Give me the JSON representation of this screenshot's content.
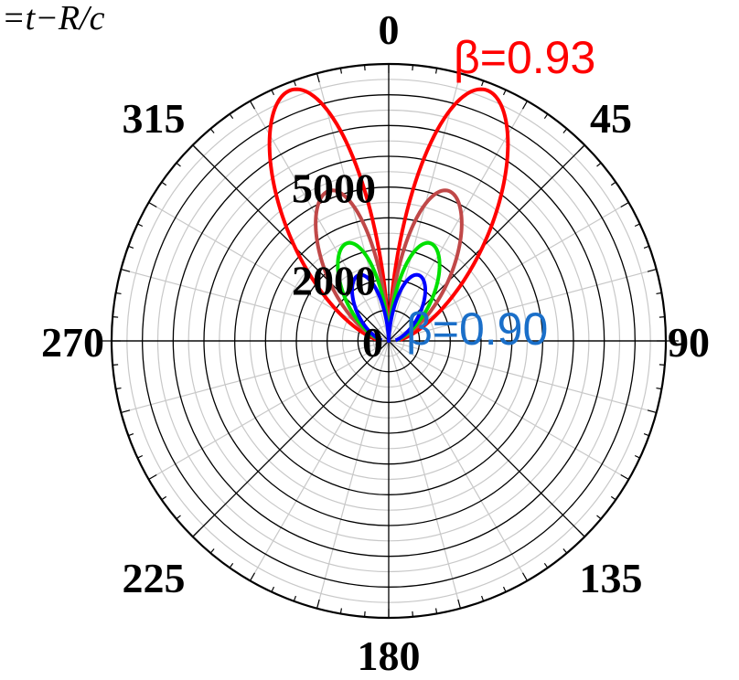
{
  "header": {
    "formula_fragment": "=t−R/c"
  },
  "chart_data": {
    "type": "polar-line",
    "title": "",
    "angular_axis": {
      "unit": "degrees",
      "direction": "clockwise",
      "zero_at": "top",
      "labels": [
        {
          "angle": 0,
          "text": "0"
        },
        {
          "angle": 45,
          "text": "45"
        },
        {
          "angle": 90,
          "text": "90"
        },
        {
          "angle": 135,
          "text": "135"
        },
        {
          "angle": 180,
          "text": "180"
        },
        {
          "angle": 225,
          "text": "225"
        },
        {
          "angle": 270,
          "text": "270"
        },
        {
          "angle": 315,
          "text": "315"
        }
      ]
    },
    "radial_axis": {
      "range": [
        0,
        9000
      ],
      "tick_labels": [
        {
          "value": 0,
          "text": "0"
        },
        {
          "value": 2000,
          "text": "2000"
        },
        {
          "value": 5000,
          "text": "5000"
        }
      ],
      "label_angle_deg": 0
    },
    "grid": true,
    "series": [
      {
        "color": "#ff0000",
        "peak": 8750,
        "peak_angle_deg": 21.5,
        "label": "β=0.93"
      },
      {
        "color": "#c04848",
        "peak": 5250,
        "peak_angle_deg": 22,
        "label": ""
      },
      {
        "color": "#00e000",
        "peak": 3450,
        "peak_angle_deg": 23.5,
        "label": ""
      },
      {
        "color": "#0000ff",
        "peak": 2350,
        "peak_angle_deg": 25,
        "label": "β=0.90"
      }
    ],
    "annotations": [
      {
        "text": "β=0.93",
        "color": "#ff0000"
      },
      {
        "text": "β=0.90",
        "color": "#1a6fc9"
      }
    ]
  }
}
